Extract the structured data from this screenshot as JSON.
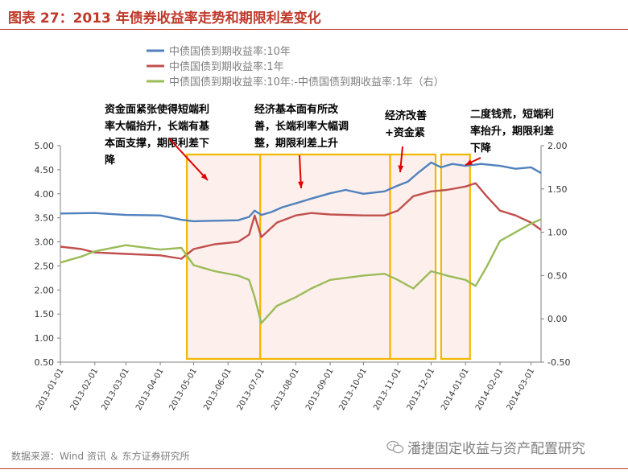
{
  "title": "图表 27：2013 年债券收益率走势和期限利差变化",
  "source": "数据来源：Wind 资讯 ＆ 东方证券研究所",
  "watermark": "潘捷固定收益与资产配置研究",
  "colors": {
    "title": "#c0392b",
    "s10y": "#4f81bd",
    "s1y": "#c0504d",
    "spread": "#9bbb59",
    "box": "#f5b500",
    "boxfill": "#fbe3dd"
  },
  "chart_data": {
    "type": "line",
    "x_ticks": [
      "2013-01-01",
      "2013-02-01",
      "2013-03-01",
      "2013-04-01",
      "2013-05-01",
      "2013-06-01",
      "2013-07-01",
      "2013-08-01",
      "2013-09-01",
      "2013-10-01",
      "2013-11-01",
      "2013-12-01",
      "2014-01-01",
      "2014-02-01",
      "2014-03-01"
    ],
    "ylim_left": [
      0.5,
      5.0
    ],
    "yticks_left": [
      "5.00",
      "4.50",
      "4.00",
      "3.50",
      "3.00",
      "2.50",
      "2.00",
      "1.50",
      "1.00",
      "0.50"
    ],
    "ylim_right": [
      -0.5,
      2.0
    ],
    "yticks_right": [
      "2.00",
      "1.50",
      "1.00",
      "0.50",
      "0.00",
      "-0.50"
    ],
    "series": [
      {
        "name": "中债国债到期收益率:10年",
        "axis": "left",
        "color": "#4f81bd",
        "x": [
          "2013-01-01",
          "2013-02-01",
          "2013-03-01",
          "2013-04-01",
          "2013-04-20",
          "2013-05-01",
          "2013-05-20",
          "2013-06-10",
          "2013-06-20",
          "2013-06-25",
          "2013-07-01",
          "2013-07-10",
          "2013-07-20",
          "2013-08-01",
          "2013-08-15",
          "2013-09-01",
          "2013-09-15",
          "2013-10-01",
          "2013-10-20",
          "2013-11-01",
          "2013-11-10",
          "2013-11-20",
          "2013-12-01",
          "2013-12-10",
          "2013-12-20",
          "2014-01-01",
          "2014-01-15",
          "2014-02-01",
          "2014-02-15",
          "2014-03-01",
          "2014-03-10"
        ],
        "values": [
          3.59,
          3.6,
          3.56,
          3.55,
          3.46,
          3.43,
          3.44,
          3.45,
          3.52,
          3.65,
          3.56,
          3.62,
          3.72,
          3.8,
          3.9,
          4.01,
          4.08,
          4.0,
          4.05,
          4.17,
          4.25,
          4.45,
          4.65,
          4.55,
          4.62,
          4.58,
          4.62,
          4.58,
          4.52,
          4.55,
          4.43
        ]
      },
      {
        "name": "中债国债到期收益率:1年",
        "axis": "left",
        "color": "#c0504d",
        "x": [
          "2013-01-01",
          "2013-01-20",
          "2013-02-01",
          "2013-03-01",
          "2013-04-01",
          "2013-04-20",
          "2013-05-01",
          "2013-05-20",
          "2013-06-10",
          "2013-06-20",
          "2013-06-25",
          "2013-07-01",
          "2013-07-15",
          "2013-08-01",
          "2013-08-15",
          "2013-09-01",
          "2013-10-01",
          "2013-10-20",
          "2013-11-01",
          "2013-11-15",
          "2013-12-01",
          "2013-12-15",
          "2014-01-01",
          "2014-01-10",
          "2014-01-20",
          "2014-02-01",
          "2014-02-15",
          "2014-03-01",
          "2014-03-10"
        ],
        "values": [
          2.9,
          2.85,
          2.78,
          2.75,
          2.72,
          2.65,
          2.85,
          2.95,
          3.0,
          3.15,
          3.55,
          3.1,
          3.4,
          3.55,
          3.6,
          3.57,
          3.55,
          3.55,
          3.65,
          3.95,
          4.05,
          4.08,
          4.15,
          4.22,
          3.95,
          3.65,
          3.55,
          3.4,
          3.25
        ]
      },
      {
        "name": "中债国债到期收益率:10年:-中债国债到期收益率:1年（右）",
        "axis": "right",
        "color": "#9bbb59",
        "x": [
          "2013-01-01",
          "2013-01-20",
          "2013-02-01",
          "2013-03-01",
          "2013-04-01",
          "2013-04-20",
          "2013-05-01",
          "2013-05-20",
          "2013-06-10",
          "2013-06-20",
          "2013-06-25",
          "2013-07-01",
          "2013-07-15",
          "2013-08-01",
          "2013-08-15",
          "2013-09-01",
          "2013-10-01",
          "2013-10-20",
          "2013-11-01",
          "2013-11-15",
          "2013-12-01",
          "2013-12-15",
          "2014-01-01",
          "2014-01-10",
          "2014-01-20",
          "2014-02-01",
          "2014-02-15",
          "2014-03-01",
          "2014-03-10"
        ],
        "values": [
          0.65,
          0.72,
          0.78,
          0.85,
          0.8,
          0.82,
          0.62,
          0.55,
          0.5,
          0.45,
          0.25,
          -0.05,
          0.15,
          0.25,
          0.35,
          0.45,
          0.5,
          0.52,
          0.45,
          0.35,
          0.55,
          0.5,
          0.45,
          0.38,
          0.6,
          0.9,
          1.0,
          1.1,
          1.15
        ]
      }
    ],
    "annotations": [
      {
        "text_lines": [
          "资金面紧张使得短端利",
          "率大幅抬升，长端有基",
          "本面支撑，期限利差下",
          "降"
        ],
        "x_start": "2013-04-25",
        "x_end": "2013-06-30"
      },
      {
        "text_lines": [
          "经济基本面有所改",
          "善，长端利率大幅调",
          "整，期限利差上升"
        ],
        "x_start": "2013-06-30",
        "x_end": "2013-10-25"
      },
      {
        "text_lines": [
          "经济改善",
          "+资金紧"
        ],
        "x_start": "2013-10-25",
        "x_end": "2013-12-05"
      },
      {
        "text_lines": [
          "二度钱荒，短端利",
          "率抬升，期限利差",
          "下降"
        ],
        "x_start": "2013-12-10",
        "x_end": "2014-01-05"
      }
    ]
  }
}
